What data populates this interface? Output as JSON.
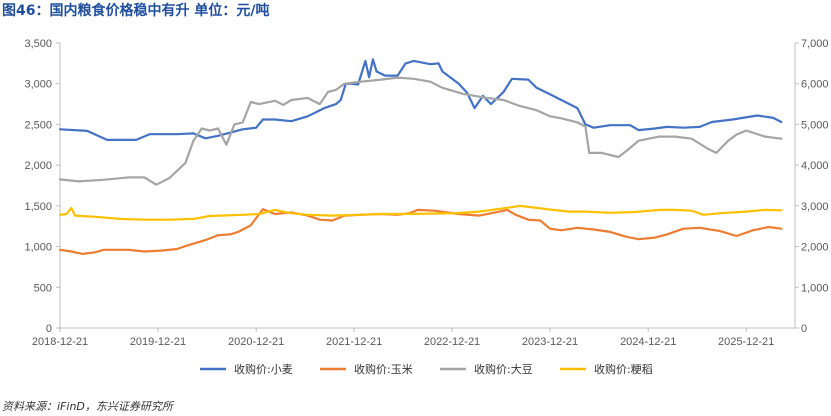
{
  "header": {
    "title": "图46：国内粮食价格稳中有升  单位：元/吨"
  },
  "footer": {
    "source": "资料来源：iFinD，东兴证券研究所"
  },
  "chart_data": {
    "type": "line",
    "x_range": [
      "2018-12-21",
      "2026-06-21"
    ],
    "x_ticks": [
      "2018-12-21",
      "2019-12-21",
      "2020-12-21",
      "2021-12-21",
      "2022-12-21",
      "2023-12-21",
      "2024-12-21",
      "2025-12-21"
    ],
    "y_left": {
      "min": 0,
      "max": 3500,
      "ticks": [
        "0",
        "500",
        "1,000",
        "1,500",
        "2,000",
        "2,500",
        "3,000",
        "3,500"
      ]
    },
    "y_right": {
      "min": 0,
      "max": 7000,
      "ticks": [
        "0",
        "1,000",
        "2,000",
        "3,000",
        "4,000",
        "5,000",
        "6,000",
        "7,000"
      ]
    },
    "grid": false,
    "legend_position": "bottom",
    "series": [
      {
        "name": "收购价:小麦",
        "axis": "left",
        "color": "#4472c4",
        "points": [
          [
            "2018-12-21",
            2440
          ],
          [
            "2019-04-01",
            2420
          ],
          [
            "2019-06-15",
            2310
          ],
          [
            "2019-10-01",
            2310
          ],
          [
            "2019-11-20",
            2380
          ],
          [
            "2020-03-01",
            2380
          ],
          [
            "2020-05-01",
            2390
          ],
          [
            "2020-06-15",
            2330
          ],
          [
            "2020-08-01",
            2360
          ],
          [
            "2020-11-01",
            2440
          ],
          [
            "2020-12-21",
            2460
          ],
          [
            "2021-01-15",
            2560
          ],
          [
            "2021-03-01",
            2560
          ],
          [
            "2021-05-01",
            2540
          ],
          [
            "2021-07-01",
            2600
          ],
          [
            "2021-09-01",
            2700
          ],
          [
            "2021-10-15",
            2750
          ],
          [
            "2021-11-01",
            2800
          ],
          [
            "2021-11-20",
            3000
          ],
          [
            "2021-12-10",
            3000
          ],
          [
            "2022-01-05",
            2990
          ],
          [
            "2022-02-01",
            3280
          ],
          [
            "2022-02-15",
            3080
          ],
          [
            "2022-03-01",
            3300
          ],
          [
            "2022-03-15",
            3150
          ],
          [
            "2022-04-15",
            3100
          ],
          [
            "2022-06-01",
            3100
          ],
          [
            "2022-07-01",
            3250
          ],
          [
            "2022-08-01",
            3280
          ],
          [
            "2022-10-01",
            3240
          ],
          [
            "2022-11-01",
            3250
          ],
          [
            "2022-11-15",
            3150
          ],
          [
            "2023-01-15",
            3000
          ],
          [
            "2023-02-15",
            2890
          ],
          [
            "2023-03-15",
            2700
          ],
          [
            "2023-04-15",
            2850
          ],
          [
            "2023-05-15",
            2750
          ],
          [
            "2023-07-01",
            2900
          ],
          [
            "2023-08-01",
            3060
          ],
          [
            "2023-10-01",
            3050
          ],
          [
            "2023-11-01",
            2950
          ],
          [
            "2023-12-21",
            2870
          ],
          [
            "2024-02-01",
            2800
          ],
          [
            "2024-04-01",
            2700
          ],
          [
            "2024-05-01",
            2500
          ],
          [
            "2024-06-01",
            2460
          ],
          [
            "2024-08-01",
            2490
          ],
          [
            "2024-10-15",
            2490
          ],
          [
            "2024-11-15",
            2430
          ],
          [
            "2025-01-15",
            2450
          ],
          [
            "2025-03-01",
            2470
          ],
          [
            "2025-05-01",
            2460
          ],
          [
            "2025-07-01",
            2470
          ],
          [
            "2025-08-15",
            2530
          ],
          [
            "2025-11-01",
            2560
          ],
          [
            "2026-02-01",
            2610
          ],
          [
            "2026-04-01",
            2580
          ],
          [
            "2026-05-01",
            2530
          ]
        ]
      },
      {
        "name": "收购价:玉米",
        "axis": "left",
        "color": "#ed7d31",
        "points": [
          [
            "2018-12-21",
            960
          ],
          [
            "2019-02-01",
            940
          ],
          [
            "2019-03-15",
            910
          ],
          [
            "2019-05-01",
            930
          ],
          [
            "2019-06-01",
            960
          ],
          [
            "2019-09-01",
            960
          ],
          [
            "2019-11-01",
            940
          ],
          [
            "2020-01-01",
            950
          ],
          [
            "2020-03-01",
            970
          ],
          [
            "2020-04-15",
            1020
          ],
          [
            "2020-06-15",
            1080
          ],
          [
            "2020-08-01",
            1140
          ],
          [
            "2020-09-15",
            1150
          ],
          [
            "2020-10-15",
            1180
          ],
          [
            "2020-12-01",
            1260
          ],
          [
            "2021-01-15",
            1460
          ],
          [
            "2021-03-01",
            1400
          ],
          [
            "2021-05-01",
            1420
          ],
          [
            "2021-07-01",
            1380
          ],
          [
            "2021-08-15",
            1330
          ],
          [
            "2021-10-01",
            1320
          ],
          [
            "2021-11-15",
            1380
          ],
          [
            "2022-01-15",
            1390
          ],
          [
            "2022-04-01",
            1400
          ],
          [
            "2022-06-01",
            1390
          ],
          [
            "2022-07-15",
            1410
          ],
          [
            "2022-08-15",
            1450
          ],
          [
            "2022-10-15",
            1440
          ],
          [
            "2022-12-01",
            1420
          ],
          [
            "2023-01-15",
            1400
          ],
          [
            "2023-04-01",
            1380
          ],
          [
            "2023-06-01",
            1420
          ],
          [
            "2023-07-15",
            1450
          ],
          [
            "2023-08-15",
            1390
          ],
          [
            "2023-10-01",
            1330
          ],
          [
            "2023-11-15",
            1320
          ],
          [
            "2023-12-21",
            1220
          ],
          [
            "2024-02-01",
            1200
          ],
          [
            "2024-04-01",
            1230
          ],
          [
            "2024-06-01",
            1210
          ],
          [
            "2024-08-01",
            1180
          ],
          [
            "2024-10-01",
            1120
          ],
          [
            "2024-11-15",
            1090
          ],
          [
            "2025-01-15",
            1110
          ],
          [
            "2025-03-01",
            1150
          ],
          [
            "2025-05-01",
            1220
          ],
          [
            "2025-07-01",
            1230
          ],
          [
            "2025-09-15",
            1190
          ],
          [
            "2025-11-15",
            1130
          ],
          [
            "2026-01-15",
            1200
          ],
          [
            "2026-03-15",
            1240
          ],
          [
            "2026-05-01",
            1220
          ]
        ]
      },
      {
        "name": "收购价:大豆",
        "axis": "right",
        "color": "#a5a5a5",
        "points": [
          [
            "2018-12-21",
            3650
          ],
          [
            "2019-03-01",
            3600
          ],
          [
            "2019-06-01",
            3640
          ],
          [
            "2019-09-01",
            3700
          ],
          [
            "2019-11-01",
            3700
          ],
          [
            "2019-12-15",
            3520
          ],
          [
            "2020-02-01",
            3680
          ],
          [
            "2020-04-01",
            4050
          ],
          [
            "2020-05-01",
            4600
          ],
          [
            "2020-06-01",
            4900
          ],
          [
            "2020-07-01",
            4850
          ],
          [
            "2020-08-01",
            4900
          ],
          [
            "2020-09-01",
            4500
          ],
          [
            "2020-10-01",
            5000
          ],
          [
            "2020-11-01",
            5050
          ],
          [
            "2020-12-01",
            5550
          ],
          [
            "2021-01-01",
            5500
          ],
          [
            "2021-03-01",
            5580
          ],
          [
            "2021-04-01",
            5480
          ],
          [
            "2021-05-01",
            5600
          ],
          [
            "2021-07-01",
            5650
          ],
          [
            "2021-08-15",
            5500
          ],
          [
            "2021-09-15",
            5800
          ],
          [
            "2021-10-15",
            5850
          ],
          [
            "2021-11-15",
            6000
          ],
          [
            "2022-01-15",
            6050
          ],
          [
            "2022-04-01",
            6100
          ],
          [
            "2022-06-01",
            6150
          ],
          [
            "2022-08-01",
            6120
          ],
          [
            "2022-10-01",
            6050
          ],
          [
            "2022-11-15",
            5900
          ],
          [
            "2023-02-01",
            5750
          ],
          [
            "2023-05-01",
            5650
          ],
          [
            "2023-07-01",
            5600
          ],
          [
            "2023-09-01",
            5450
          ],
          [
            "2023-11-01",
            5350
          ],
          [
            "2023-12-21",
            5200
          ],
          [
            "2024-02-01",
            5150
          ],
          [
            "2024-04-01",
            5050
          ],
          [
            "2024-05-01",
            4950
          ],
          [
            "2024-05-15",
            4300
          ],
          [
            "2024-07-01",
            4300
          ],
          [
            "2024-09-01",
            4200
          ],
          [
            "2024-10-01",
            4350
          ],
          [
            "2024-11-15",
            4600
          ],
          [
            "2025-02-01",
            4700
          ],
          [
            "2025-04-01",
            4700
          ],
          [
            "2025-06-01",
            4650
          ],
          [
            "2025-08-01",
            4400
          ],
          [
            "2025-09-01",
            4300
          ],
          [
            "2025-10-15",
            4600
          ],
          [
            "2025-11-15",
            4750
          ],
          [
            "2025-12-21",
            4850
          ],
          [
            "2026-03-01",
            4700
          ],
          [
            "2026-05-01",
            4650
          ]
        ]
      },
      {
        "name": "收购价:粳稻",
        "axis": "right",
        "color": "#ffc000",
        "points": [
          [
            "2018-12-21",
            2780
          ],
          [
            "2019-01-15",
            2800
          ],
          [
            "2019-02-01",
            2950
          ],
          [
            "2019-02-15",
            2760
          ],
          [
            "2019-05-01",
            2730
          ],
          [
            "2019-08-01",
            2680
          ],
          [
            "2019-11-01",
            2660
          ],
          [
            "2020-02-01",
            2660
          ],
          [
            "2020-05-01",
            2680
          ],
          [
            "2020-07-01",
            2750
          ],
          [
            "2020-11-01",
            2780
          ],
          [
            "2021-01-01",
            2800
          ],
          [
            "2021-03-01",
            2900
          ],
          [
            "2021-05-01",
            2820
          ],
          [
            "2021-07-01",
            2780
          ],
          [
            "2021-10-01",
            2760
          ],
          [
            "2022-01-01",
            2780
          ],
          [
            "2022-04-01",
            2800
          ],
          [
            "2022-07-01",
            2800
          ],
          [
            "2022-10-01",
            2810
          ],
          [
            "2023-01-01",
            2820
          ],
          [
            "2023-04-01",
            2860
          ],
          [
            "2023-07-01",
            2940
          ],
          [
            "2023-09-01",
            3000
          ],
          [
            "2023-11-01",
            2950
          ],
          [
            "2024-01-01",
            2900
          ],
          [
            "2024-03-01",
            2860
          ],
          [
            "2024-05-01",
            2860
          ],
          [
            "2024-08-01",
            2830
          ],
          [
            "2024-11-01",
            2850
          ],
          [
            "2025-02-01",
            2900
          ],
          [
            "2025-04-01",
            2900
          ],
          [
            "2025-06-01",
            2880
          ],
          [
            "2025-07-15",
            2780
          ],
          [
            "2025-09-15",
            2820
          ],
          [
            "2025-12-21",
            2860
          ],
          [
            "2026-03-01",
            2900
          ],
          [
            "2026-05-01",
            2890
          ]
        ]
      }
    ]
  }
}
